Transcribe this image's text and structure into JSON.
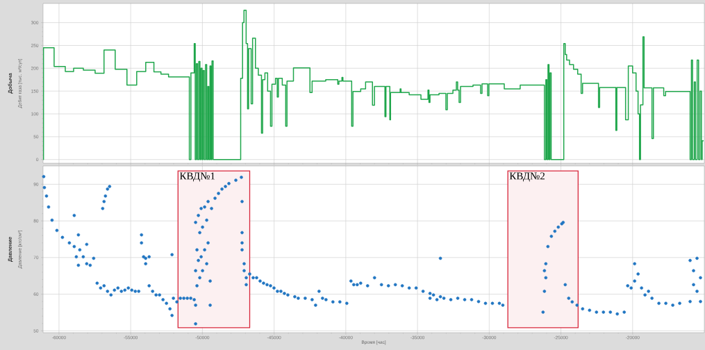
{
  "chart_data": [
    {
      "type": "step",
      "title": "Добыча",
      "ylabel": "Дебит газа [тыс. м³/сут]",
      "color": "#1fa64b",
      "grid": true,
      "tick_labels": "y",
      "xlim": [
        -61110,
        -15000
      ],
      "ylim": [
        -8,
        342
      ],
      "xticks": [
        -60000,
        -55000,
        -50000,
        -45000,
        -40000,
        -35000,
        -30000,
        -25000,
        -20000
      ],
      "yticks": [
        0,
        50,
        100,
        150,
        200,
        250,
        300
      ],
      "x": [
        -61100,
        -61080,
        -60340,
        -59560,
        -58980,
        -58300,
        -57480,
        -56860,
        -56080,
        -55260,
        -54580,
        -53950,
        -53380,
        -52890,
        -52360,
        -50910,
        -50800,
        -50570,
        -50500,
        -50420,
        -50340,
        -50250,
        -50170,
        -50100,
        -50020,
        -49950,
        -49870,
        -49780,
        -49700,
        -49620,
        -49550,
        -49470,
        -49400,
        -49330,
        -49250,
        -47330,
        -47200,
        -47100,
        -46950,
        -46850,
        -46780,
        -46600,
        -46500,
        -46300,
        -46100,
        -45880,
        -45800,
        -45640,
        -45450,
        -45250,
        -45150,
        -44900,
        -44780,
        -44700,
        -44430,
        -44190,
        -44100,
        -43650,
        -42500,
        -42350,
        -41400,
        -40560,
        -40480,
        -40270,
        -40200,
        -39590,
        -39500,
        -38960,
        -38620,
        -38140,
        -38000,
        -37270,
        -37200,
        -36930,
        -36880,
        -36210,
        -36150,
        -35580,
        -34760,
        -34270,
        -34200,
        -34130,
        -33500,
        -33020,
        -32920,
        -32530,
        -32290,
        -32200,
        -32100,
        -32000,
        -31130,
        -30600,
        -30500,
        -30110,
        -30020,
        -28950,
        -27840,
        -26150,
        -26050,
        -25980,
        -25900,
        -25830,
        -25760,
        -25680,
        -24800,
        -24700,
        -24600,
        -24400,
        -24120,
        -23830,
        -23590,
        -23490,
        -22380,
        -22300,
        -21170,
        -21100,
        -20490,
        -20300,
        -20000,
        -19760,
        -19620,
        -19520,
        -19450,
        -19280,
        -19200,
        -18650,
        -18550,
        -17830,
        -17700,
        -15990,
        -15900,
        -15820,
        -15700,
        -15620,
        -15500,
        -15400,
        -15300,
        -15200,
        -15150,
        -15050
      ],
      "values": [
        0,
        245,
        204,
        193,
        200,
        196,
        189,
        240,
        198,
        163,
        193,
        213,
        192,
        187,
        181,
        0,
        190,
        254,
        0,
        210,
        0,
        215,
        0,
        200,
        0,
        195,
        0,
        208,
        0,
        160,
        0,
        205,
        0,
        216,
        0,
        178,
        300,
        327,
        254,
        111,
        243,
        122,
        266,
        200,
        185,
        58,
        175,
        190,
        150,
        73,
        165,
        178,
        137,
        178,
        163,
        73,
        172,
        201,
        147,
        172,
        175,
        165,
        172,
        180,
        172,
        73,
        149,
        155,
        170,
        119,
        160,
        94,
        160,
        87,
        147,
        155,
        147,
        142,
        132,
        152,
        125,
        142,
        145,
        109,
        145,
        152,
        170,
        152,
        125,
        160,
        163,
        145,
        166,
        140,
        166,
        155,
        163,
        0,
        175,
        0,
        208,
        0,
        190,
        0,
        254,
        230,
        218,
        208,
        198,
        187,
        145,
        167,
        114,
        158,
        64,
        158,
        87,
        205,
        190,
        150,
        100,
        0,
        120,
        269,
        157,
        46,
        157,
        140,
        149,
        0,
        218,
        0,
        170,
        0,
        218,
        0,
        150,
        0,
        41,
        41
      ]
    },
    {
      "type": "scatter",
      "title": "Давление",
      "ylabel": "Давление [кгс/см²]",
      "xlabel": "Время [час]",
      "color": "#2176c2",
      "marker": "circle",
      "grid": true,
      "xlim": [
        -61110,
        -15000
      ],
      "ylim": [
        49.5,
        95
      ],
      "xticks": [
        -60000,
        -55000,
        -50000,
        -45000,
        -40000,
        -35000,
        -30000,
        -25000,
        -20000
      ],
      "yticks": [
        50,
        60,
        70,
        80,
        90
      ],
      "bands": [
        {
          "axis": "x",
          "from": -51700,
          "to": -46700,
          "label": "КВД№1"
        },
        {
          "axis": "x",
          "from": -28700,
          "to": -23800,
          "label": "КВД№2"
        }
      ],
      "x": [
        -61064,
        -61016,
        -60870,
        -60725,
        -60484,
        -60145,
        -59758,
        -59275,
        -58936,
        -58936,
        -58791,
        -58646,
        -58646,
        -58549,
        -58307,
        -58066,
        -58066,
        -57824,
        -57582,
        -57340,
        -57098,
        -56953,
        -56857,
        -56857,
        -56760,
        -56615,
        -56615,
        -56470,
        -56373,
        -56131,
        -55889,
        -55648,
        -55406,
        -55164,
        -54922,
        -54680,
        -54439,
        -54245,
        -54245,
        -54100,
        -53955,
        -53955,
        -53713,
        -53713,
        -53471,
        -53230,
        -52988,
        -52746,
        -52504,
        -52262,
        -52117,
        -52117,
        -52021,
        -51779,
        -51537,
        -51295,
        -51053,
        -50812,
        -50570,
        -50473,
        -50473,
        -50473,
        -50473,
        -50377,
        -50377,
        -50280,
        -50280,
        -50183,
        -50183,
        -50086,
        -50086,
        -49989,
        -49989,
        -49844,
        -49844,
        -49699,
        -49699,
        -49603,
        -49603,
        -49457,
        -49457,
        -49361,
        -49119,
        -48877,
        -48635,
        -48394,
        -48152,
        -47668,
        -47281,
        -47233,
        -47233,
        -47233,
        -47233,
        -47088,
        -47088,
        -46943,
        -46943,
        -46701,
        -46459,
        -46217,
        -45976,
        -45734,
        -45492,
        -45250,
        -45008,
        -44767,
        -44525,
        -44283,
        -44041,
        -43558,
        -43316,
        -42832,
        -42349,
        -42107,
        -41865,
        -41623,
        -41381,
        -40898,
        -40414,
        -39930,
        -39640,
        -39447,
        -39205,
        -38963,
        -38480,
        -37996,
        -37513,
        -37029,
        -36545,
        -36062,
        -35578,
        -35095,
        -34611,
        -34127,
        -34127,
        -33886,
        -33644,
        -33402,
        -33402,
        -33160,
        -32677,
        -32193,
        -31709,
        -31226,
        -30742,
        -30259,
        -29775,
        -29291,
        -29050,
        -26245,
        -26148,
        -26148,
        -26052,
        -26052,
        -25906,
        -25664,
        -25423,
        -25181,
        -24939,
        -24842,
        -24697,
        -24455,
        -24213,
        -23875,
        -23486,
        -23002,
        -22519,
        -22035,
        -21551,
        -21068,
        -20584,
        -20342,
        -20100,
        -19859,
        -19859,
        -19617,
        -19376,
        -19134,
        -18892,
        -18650,
        -18167,
        -17683,
        -17199,
        -16716,
        -15990,
        -15990,
        -15750,
        -15750,
        -15508,
        -15508,
        -15267,
        -15267
      ],
      "values": [
        92.1,
        89.1,
        86.8,
        83.8,
        80.2,
        77.4,
        75.5,
        74.0,
        73.0,
        81.5,
        70.2,
        76.2,
        67.9,
        72.1,
        70.2,
        68.3,
        73.6,
        67.9,
        69.8,
        63.0,
        61.7,
        83.4,
        85.3,
        62.3,
        86.8,
        88.7,
        60.8,
        89.4,
        59.8,
        61.1,
        61.7,
        60.8,
        61.1,
        61.7,
        61.1,
        60.8,
        60.8,
        76.2,
        74.0,
        70.2,
        69.8,
        68.3,
        70.2,
        62.3,
        60.8,
        59.8,
        59.8,
        58.5,
        57.5,
        56.0,
        54.2,
        70.8,
        58.9,
        57.9,
        58.9,
        58.9,
        58.9,
        58.9,
        58.5,
        51.9,
        57.0,
        66.4,
        79.6,
        72.1,
        62.3,
        81.5,
        69.2,
        76.8,
        64.5,
        83.4,
        70.2,
        78.3,
        66.4,
        83.8,
        72.1,
        80.2,
        68.3,
        85.3,
        74.0,
        57.0,
        63.6,
        83.4,
        86.2,
        87.5,
        88.7,
        89.4,
        90.2,
        91.1,
        91.9,
        85.3,
        76.8,
        74.0,
        72.1,
        68.3,
        66.4,
        64.5,
        62.6,
        65.5,
        64.5,
        64.5,
        63.6,
        63.0,
        62.6,
        62.3,
        61.7,
        60.8,
        60.8,
        60.2,
        59.8,
        59.3,
        58.9,
        58.9,
        58.5,
        57.0,
        60.8,
        58.9,
        58.5,
        57.9,
        57.9,
        57.5,
        63.6,
        62.6,
        62.6,
        63.0,
        62.3,
        64.5,
        62.6,
        62.3,
        62.6,
        62.3,
        61.7,
        61.7,
        60.8,
        60.2,
        58.9,
        59.8,
        58.5,
        69.8,
        59.3,
        58.9,
        58.5,
        58.9,
        58.5,
        58.5,
        58.0,
        57.5,
        57.5,
        57.5,
        57.0,
        55.1,
        60.8,
        66.4,
        68.3,
        64.5,
        73.0,
        75.8,
        77.2,
        78.3,
        79.2,
        79.6,
        62.6,
        58.9,
        57.9,
        57.0,
        56.0,
        55.6,
        55.1,
        55.1,
        55.1,
        54.6,
        55.1,
        62.3,
        61.7,
        68.3,
        63.6,
        65.5,
        61.7,
        59.8,
        60.8,
        58.9,
        57.5,
        57.5,
        57.0,
        57.5,
        58.0,
        69.2,
        62.6,
        66.4,
        60.8,
        69.8,
        64.5,
        58.0
      ]
    }
  ]
}
